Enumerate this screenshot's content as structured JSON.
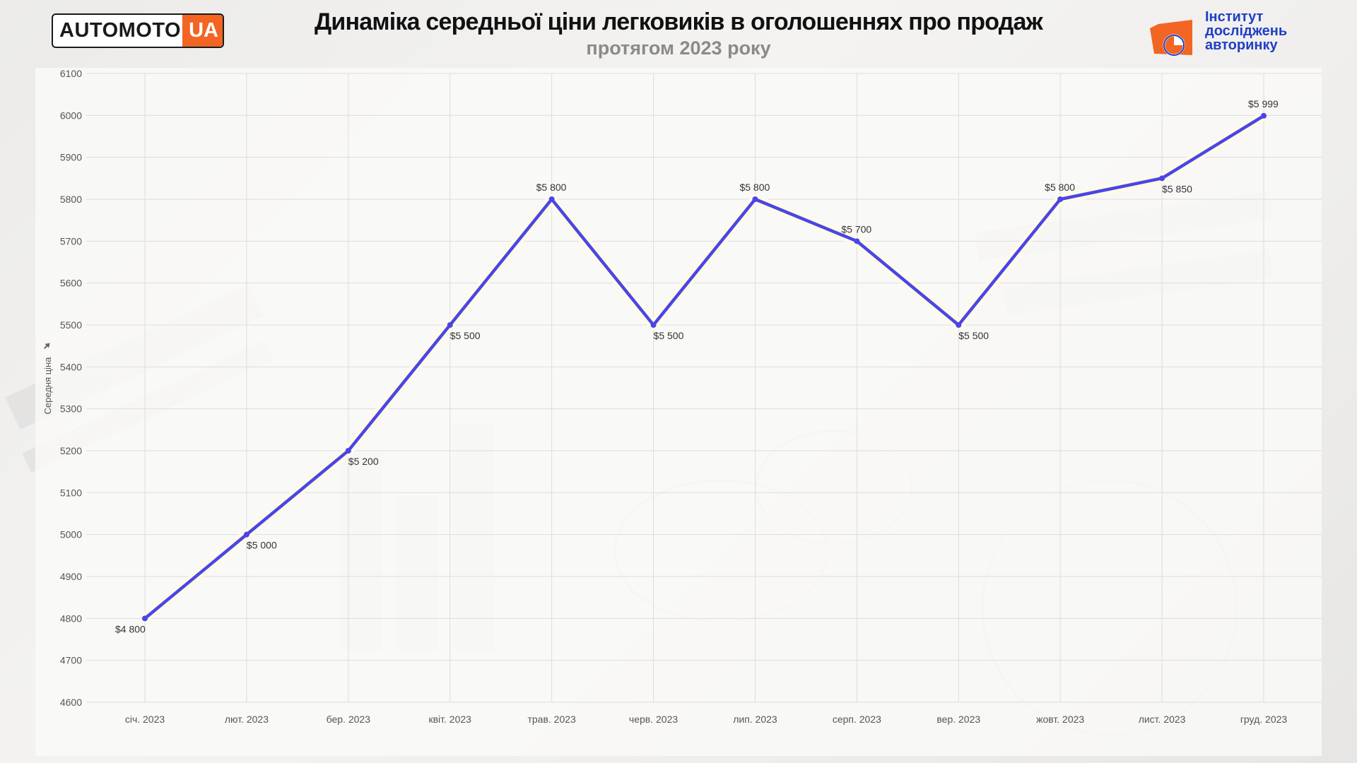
{
  "header": {
    "title": "Динаміка середньої ціни легковиків в оголошеннях про продаж",
    "subtitle": "протягом 2023 року"
  },
  "logos": {
    "left": {
      "part1": "AUTOMOTO",
      "part2": "UA"
    },
    "right": {
      "line1": "Інститут",
      "line2": "досліджень",
      "line3": "авторинку"
    }
  },
  "colors": {
    "line": "#4a45e6",
    "accent_orange": "#f26522",
    "accent_blue": "#1f3fc4",
    "grid": "#dddddd"
  },
  "chart_data": {
    "type": "line",
    "categories": [
      "січ. 2023",
      "лют. 2023",
      "бер. 2023",
      "квіт. 2023",
      "трав. 2023",
      "черв. 2023",
      "лип. 2023",
      "серп. 2023",
      "вер. 2023",
      "жовт. 2023",
      "лист. 2023",
      "груд. 2023"
    ],
    "series": [
      {
        "values": [
          4800,
          5000,
          5200,
          5500,
          5800,
          5500,
          5800,
          5700,
          5500,
          5800,
          5850,
          5999
        ]
      }
    ],
    "data_labels": [
      "$4 800",
      "$5 000",
      "$5 200",
      "$5 500",
      "$5 800",
      "$5 500",
      "$5 800",
      "$5 700",
      "$5 500",
      "$5 800",
      "$5 850",
      "$5 999"
    ],
    "label_position": [
      "below",
      "below",
      "below",
      "below",
      "above",
      "below",
      "above",
      "above",
      "below",
      "above",
      "below",
      "above"
    ],
    "ylabel": "Середня ціна",
    "xlabel": "",
    "ylim": [
      4600,
      6100
    ],
    "yticks": [
      4600,
      4700,
      4800,
      4900,
      5000,
      5100,
      5200,
      5300,
      5400,
      5500,
      5600,
      5700,
      5800,
      5900,
      6000,
      6100
    ],
    "grid": true,
    "legend": "none"
  }
}
